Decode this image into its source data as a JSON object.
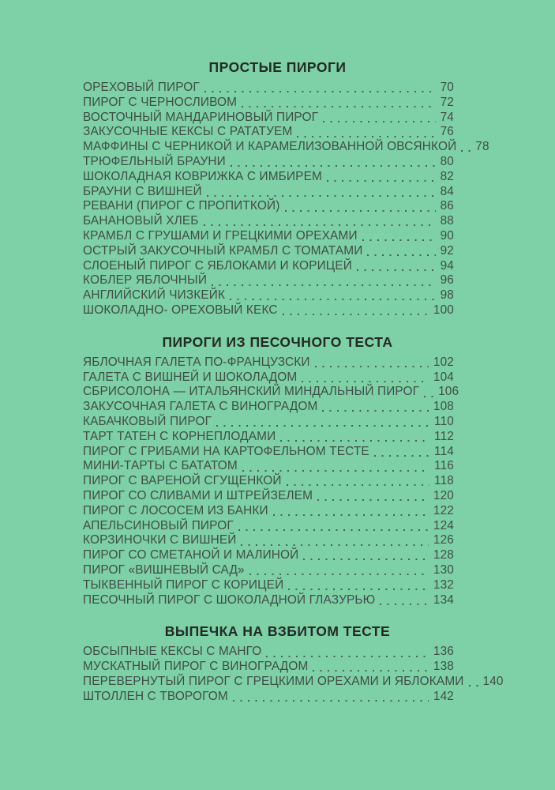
{
  "page": {
    "colors": {
      "background": "#7ed0a6",
      "text": "#3f4e46",
      "heading": "#222b24"
    }
  },
  "sections": [
    {
      "title": "ПРОСТЫЕ ПИРОГИ",
      "entries": [
        {
          "title": "ОРЕХОВЫЙ ПИРОГ",
          "page": "70"
        },
        {
          "title": "ПИРОГ С ЧЕРНОСЛИВОМ",
          "page": "72"
        },
        {
          "title": "ВОСТОЧНЫЙ МАНДАРИНОВЫЙ ПИРОГ",
          "page": "74"
        },
        {
          "title": "ЗАКУСОЧНЫЕ КЕКСЫ С РАТАТУЕМ",
          "page": "76"
        },
        {
          "title": "МАФФИНЫ С ЧЕРНИКОЙ И КАРАМЕЛИЗОВАННОЙ ОВСЯНКОЙ",
          "page": "78"
        },
        {
          "title": "ТРЮФЕЛЬНЫЙ БРАУНИ",
          "page": "80"
        },
        {
          "title": "ШОКОЛАДНАЯ КОВРИЖКА С ИМБИРЕМ",
          "page": "82"
        },
        {
          "title": "БРАУНИ С ВИШНЕЙ",
          "page": "84"
        },
        {
          "title": "РЕВАНИ (ПИРОГ С ПРОПИТКОЙ)",
          "page": "86"
        },
        {
          "title": "БАНАНОВЫЙ ХЛЕБ",
          "page": "88"
        },
        {
          "title": "КРАМБЛ С ГРУШАМИ И ГРЕЦКИМИ ОРЕХАМИ",
          "page": "90"
        },
        {
          "title": "ОСТРЫЙ ЗАКУСОЧНЫЙ КРАМБЛ С ТОМАТАМИ",
          "page": "92"
        },
        {
          "title": "СЛОЕНЫЙ ПИРОГ С ЯБЛОКАМИ И КОРИЦЕЙ",
          "page": "94"
        },
        {
          "title": "КОБЛЕР ЯБЛОЧНЫЙ",
          "page": "96"
        },
        {
          "title": "АНГЛИЙСКИЙ ЧИЗКЕЙК",
          "page": "98"
        },
        {
          "title": "ШОКОЛАДНО- ОРЕХОВЫЙ КЕКС",
          "page": "100"
        }
      ]
    },
    {
      "title": "ПИРОГИ ИЗ ПЕСОЧНОГО ТЕСТА",
      "entries": [
        {
          "title": "ЯБЛОЧНАЯ ГАЛЕТА ПО-ФРАНЦУЗСКИ",
          "page": "102"
        },
        {
          "title": "ГАЛЕТА С ВИШНЕЙ И ШОКОЛАДОМ",
          "page": "104"
        },
        {
          "title": "СБРИСОЛОНА — ИТАЛЬЯНСКИЙ МИНДАЛЬНЫЙ ПИРОГ",
          "page": "106"
        },
        {
          "title": "ЗАКУСОЧНАЯ ГАЛЕТА С ВИНОГРАДОМ",
          "page": "108"
        },
        {
          "title": "КАБАЧКОВЫЙ ПИРОГ",
          "page": "110"
        },
        {
          "title": "ТАРТ ТАТЕН С КОРНЕПЛОДАМИ",
          "page": "112"
        },
        {
          "title": "ПИРОГ С ГРИБАМИ НА КАРТОФЕЛЬНОМ ТЕСТЕ",
          "page": "114"
        },
        {
          "title": "МИНИ-ТАРТЫ С БАТАТОМ",
          "page": "116"
        },
        {
          "title": "ПИРОГ С ВАРЕНОЙ СГУЩЕНКОЙ",
          "page": "118"
        },
        {
          "title": "ПИРОГ СО СЛИВАМИ И ШТРЕЙЗЕЛЕМ",
          "page": "120"
        },
        {
          "title": "ПИРОГ С ЛОСОСЕМ ИЗ БАНКИ",
          "page": "122"
        },
        {
          "title": "АПЕЛЬСИНОВЫЙ ПИРОГ",
          "page": "124"
        },
        {
          "title": "КОРЗИНОЧКИ С ВИШНЕЙ",
          "page": "126"
        },
        {
          "title": "ПИРОГ СО СМЕТАНОЙ И МАЛИНОЙ",
          "page": "128"
        },
        {
          "title": "ПИРОГ «ВИШНЕВЫЙ САД»",
          "page": "130"
        },
        {
          "title": "ТЫКВЕННЫЙ ПИРОГ С КОРИЦЕЙ",
          "page": "132"
        },
        {
          "title": "ПЕСОЧНЫЙ ПИРОГ С ШОКОЛАДНОЙ ГЛАЗУРЬЮ",
          "page": "134"
        }
      ]
    },
    {
      "title": "ВЫПЕЧКА НА ВЗБИТОМ ТЕСТЕ",
      "entries": [
        {
          "title": "ОБСЫПНЫЕ КЕКСЫ С МАНГО",
          "page": "136"
        },
        {
          "title": "МУСКАТНЫЙ ПИРОГ С ВИНОГРАДОМ",
          "page": "138"
        },
        {
          "title": "ПЕРЕВЕРНУТЫЙ ПИРОГ С ГРЕЦКИМИ ОРЕХАМИ И ЯБЛОКАМИ",
          "page": "140"
        },
        {
          "title": "ШТОЛЛЕН С ТВОРОГОМ",
          "page": "142"
        }
      ]
    }
  ]
}
